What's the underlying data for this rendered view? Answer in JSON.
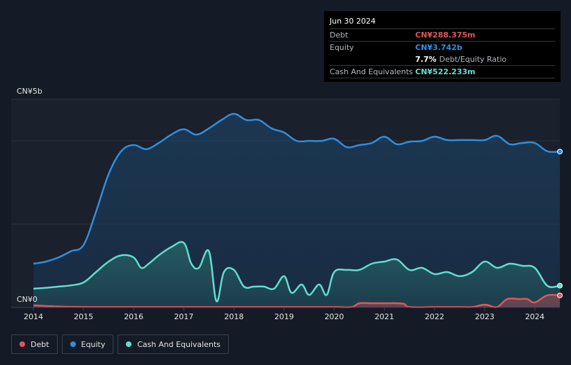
{
  "tooltip": {
    "date": "Jun 30 2024",
    "debt_label": "Debt",
    "debt_value": "CN¥288.375m",
    "equity_label": "Equity",
    "equity_value": "CN¥3.742b",
    "ratio_pct": "7.7%",
    "ratio_label": "Debt/Equity Ratio",
    "cash_label": "Cash And Equivalents",
    "cash_value": "CN¥522.233m"
  },
  "legend": [
    {
      "label": "Debt",
      "color": "#e0575b"
    },
    {
      "label": "Equity",
      "color": "#2f8fe0"
    },
    {
      "label": "Cash And Equivalents",
      "color": "#5fdfd0"
    }
  ],
  "chart_data": {
    "type": "area",
    "y_tick_labels": [
      "CN¥5b",
      "CN¥0"
    ],
    "ylim": [
      0,
      5
    ],
    "xlim": [
      2014,
      2024.5
    ],
    "x_tick_labels": [
      "2014",
      "2015",
      "2016",
      "2017",
      "2018",
      "2019",
      "2020",
      "2021",
      "2022",
      "2023",
      "2024"
    ],
    "grid": true,
    "legend_position": "bottom-left",
    "series": [
      {
        "name": "Equity",
        "color": "#2f8fe0",
        "x": [
          2014.0,
          2014.25,
          2014.5,
          2014.75,
          2015.0,
          2015.25,
          2015.5,
          2015.75,
          2016.0,
          2016.25,
          2016.5,
          2016.75,
          2017.0,
          2017.25,
          2017.5,
          2017.75,
          2018.0,
          2018.25,
          2018.5,
          2018.75,
          2019.0,
          2019.25,
          2019.5,
          2019.75,
          2020.0,
          2020.25,
          2020.5,
          2020.75,
          2021.0,
          2021.25,
          2021.5,
          2021.75,
          2022.0,
          2022.25,
          2022.5,
          2022.75,
          2023.0,
          2023.25,
          2023.5,
          2023.75,
          2024.0,
          2024.25,
          2024.5
        ],
        "values": [
          1.05,
          1.1,
          1.2,
          1.35,
          1.5,
          2.3,
          3.2,
          3.75,
          3.9,
          3.8,
          3.95,
          4.15,
          4.28,
          4.15,
          4.3,
          4.5,
          4.65,
          4.5,
          4.5,
          4.3,
          4.2,
          4.0,
          4.0,
          4.0,
          4.05,
          3.85,
          3.9,
          3.95,
          4.1,
          3.92,
          3.98,
          4.0,
          4.1,
          4.02,
          4.02,
          4.02,
          4.02,
          4.12,
          3.92,
          3.95,
          3.95,
          3.75,
          3.742
        ]
      },
      {
        "name": "Cash And Equivalents",
        "color": "#5fdfd0",
        "x": [
          2014.0,
          2014.25,
          2014.5,
          2014.75,
          2015.0,
          2015.25,
          2015.5,
          2015.75,
          2016.0,
          2016.15,
          2016.3,
          2016.5,
          2016.75,
          2017.0,
          2017.15,
          2017.3,
          2017.5,
          2017.65,
          2017.8,
          2018.0,
          2018.2,
          2018.4,
          2018.6,
          2018.8,
          2019.0,
          2019.15,
          2019.35,
          2019.5,
          2019.7,
          2019.85,
          2020.0,
          2020.25,
          2020.5,
          2020.75,
          2021.0,
          2021.25,
          2021.5,
          2021.75,
          2022.0,
          2022.25,
          2022.5,
          2022.75,
          2023.0,
          2023.25,
          2023.5,
          2023.75,
          2024.0,
          2024.25,
          2024.5
        ],
        "values": [
          0.45,
          0.47,
          0.5,
          0.53,
          0.6,
          0.85,
          1.1,
          1.25,
          1.2,
          0.95,
          1.05,
          1.25,
          1.45,
          1.55,
          1.05,
          0.95,
          1.35,
          0.15,
          0.85,
          0.9,
          0.5,
          0.5,
          0.5,
          0.45,
          0.75,
          0.35,
          0.55,
          0.3,
          0.55,
          0.3,
          0.85,
          0.9,
          0.9,
          1.05,
          1.1,
          1.15,
          0.9,
          0.95,
          0.8,
          0.85,
          0.75,
          0.85,
          1.1,
          0.95,
          1.05,
          1.0,
          0.95,
          0.52,
          0.522
        ]
      },
      {
        "name": "Debt",
        "color": "#e0575b",
        "x": [
          2014.0,
          2014.5,
          2015.0,
          2016.0,
          2017.0,
          2018.0,
          2019.0,
          2020.0,
          2020.35,
          2020.5,
          2020.75,
          2021.0,
          2021.25,
          2021.4,
          2021.5,
          2022.0,
          2022.5,
          2022.75,
          2022.95,
          2023.05,
          2023.25,
          2023.45,
          2023.7,
          2023.85,
          2024.0,
          2024.25,
          2024.5
        ],
        "values": [
          0.05,
          0.02,
          0.01,
          0.01,
          0.01,
          0.01,
          0.01,
          0.01,
          0.01,
          0.1,
          0.1,
          0.1,
          0.1,
          0.08,
          0.01,
          0.01,
          0.01,
          0.01,
          0.06,
          0.06,
          0.01,
          0.2,
          0.2,
          0.2,
          0.12,
          0.29,
          0.288
        ]
      }
    ]
  }
}
